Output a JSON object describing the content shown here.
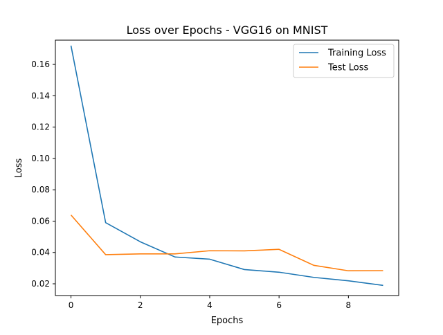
{
  "chart_data": {
    "type": "line",
    "title": "Loss over Epochs - VGG16 on MNIST",
    "xlabel": "Epochs",
    "ylabel": "Loss",
    "xlim": [
      -0.45,
      9.45
    ],
    "ylim": [
      0.0125,
      0.1755
    ],
    "xticks": [
      0,
      2,
      4,
      6,
      8
    ],
    "yticks": [
      0.02,
      0.04,
      0.06,
      0.08,
      0.1,
      0.12,
      0.14,
      0.16
    ],
    "ytick_labels": [
      "0.02",
      "0.04",
      "0.06",
      "0.08",
      "0.10",
      "0.12",
      "0.14",
      "0.16"
    ],
    "grid": false,
    "legend_position": "top-right",
    "x": [
      0,
      1,
      2,
      3,
      4,
      5,
      6,
      7,
      8,
      9
    ],
    "series": [
      {
        "name": "Training Loss",
        "color": "#1f77b4",
        "values": [
          0.172,
          0.059,
          0.0468,
          0.0371,
          0.0357,
          0.0291,
          0.0274,
          0.0241,
          0.0219,
          0.019
        ]
      },
      {
        "name": "Test Loss",
        "color": "#ff7f0e",
        "values": [
          0.0639,
          0.0386,
          0.0391,
          0.0391,
          0.0411,
          0.041,
          0.042,
          0.0318,
          0.0283,
          0.0284
        ]
      }
    ]
  }
}
